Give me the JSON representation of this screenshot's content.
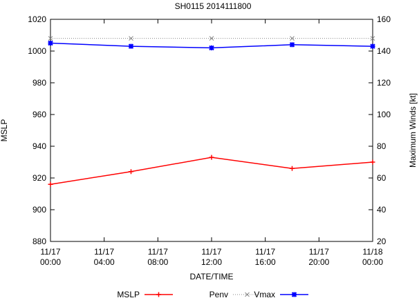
{
  "chart_data": {
    "type": "line",
    "title": "SH0115 2014111800",
    "xlabel": "DATE/TIME",
    "ylabel_left": "MSLP",
    "ylabel_right": "Maximum Winds [kt]",
    "x_hours": [
      0,
      6,
      12,
      18,
      24
    ],
    "x_ticks": [
      {
        "hour": 0,
        "date": "11/17",
        "time": "00:00"
      },
      {
        "hour": 4,
        "date": "11/17",
        "time": "04:00"
      },
      {
        "hour": 8,
        "date": "11/17",
        "time": "08:00"
      },
      {
        "hour": 12,
        "date": "11/17",
        "time": "12:00"
      },
      {
        "hour": 16,
        "date": "11/17",
        "time": "16:00"
      },
      {
        "hour": 20,
        "date": "11/17",
        "time": "20:00"
      },
      {
        "hour": 24,
        "date": "11/18",
        "time": "00:00"
      }
    ],
    "xlim": [
      0,
      24
    ],
    "ylim_left": [
      880,
      1020
    ],
    "ylim_right": [
      20,
      160
    ],
    "yticks_left": [
      880,
      900,
      920,
      940,
      960,
      980,
      1000,
      1020
    ],
    "yticks_right": [
      20,
      40,
      60,
      80,
      100,
      120,
      140,
      160
    ],
    "grid": false,
    "legend_placement": "bottom",
    "series": [
      {
        "name": "MSLP",
        "axis": "left",
        "color": "#ff0000",
        "style": "solid",
        "marker": "+",
        "values": [
          916,
          924,
          933,
          926,
          930
        ]
      },
      {
        "name": "Penv",
        "axis": "left",
        "color": "#888888",
        "style": "dotted",
        "marker": "x",
        "values": [
          1008,
          1008,
          1008,
          1008,
          1008
        ]
      },
      {
        "name": "Vmax",
        "axis": "right",
        "color": "#0000ff",
        "style": "solid",
        "marker": "*",
        "values": [
          145,
          143,
          142,
          144,
          143
        ]
      }
    ]
  }
}
